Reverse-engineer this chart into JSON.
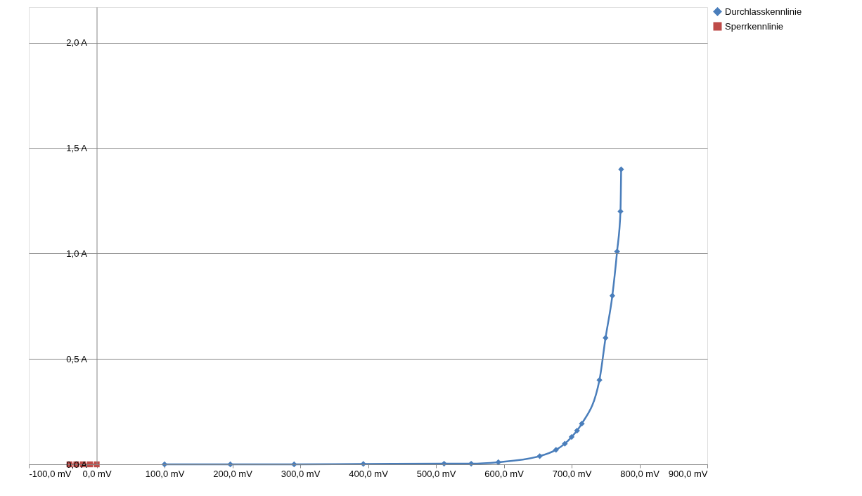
{
  "chart_data": {
    "type": "line",
    "xlim": [
      -100,
      900
    ],
    "xticks": [
      {
        "value": -100,
        "label": "-100,0 mV"
      },
      {
        "value": 0,
        "label": "0,0 mV"
      },
      {
        "value": 100,
        "label": "100,0 mV"
      },
      {
        "value": 200,
        "label": "200,0 mV"
      },
      {
        "value": 300,
        "label": "300,0 mV"
      },
      {
        "value": 400,
        "label": "400,0 mV"
      },
      {
        "value": 500,
        "label": "500,0 mV"
      },
      {
        "value": 600,
        "label": "600,0 mV"
      },
      {
        "value": 700,
        "label": "700,0 mV"
      },
      {
        "value": 800,
        "label": "800,0 mV"
      },
      {
        "value": 900,
        "label": "900,0 mV"
      }
    ],
    "ylim": [
      0,
      2.17
    ],
    "yticks": [
      {
        "value": 0,
        "label": "0,0 A"
      },
      {
        "value": 0.5,
        "label": "0,5 A"
      },
      {
        "value": 1.0,
        "label": "1,0 A"
      },
      {
        "value": 1.5,
        "label": "1,5 A"
      },
      {
        "value": 2.0,
        "label": "2,0 A"
      }
    ],
    "grid": "y",
    "legend": "right",
    "series": [
      {
        "name": "Durchlasskennlinie",
        "color": "#4a7ebb",
        "marker": "diamond",
        "x": [
          100,
          197,
          291,
          393,
          512,
          552,
          592,
          653,
          677,
          690,
          700,
          708,
          715,
          741,
          750,
          760,
          767,
          772,
          773
        ],
        "values": [
          0,
          0,
          0,
          0.002,
          0.003,
          0.003,
          0.01,
          0.039,
          0.069,
          0.098,
          0.13,
          0.16,
          0.193,
          0.4,
          0.6,
          0.8,
          1.01,
          1.2,
          1.4
        ]
      },
      {
        "name": "Sperrkennlinie",
        "color": "#be4b48",
        "marker": "square",
        "x": [
          -40,
          -30,
          -20,
          -10,
          0
        ],
        "values": [
          0,
          0,
          0,
          0,
          0
        ]
      }
    ]
  }
}
